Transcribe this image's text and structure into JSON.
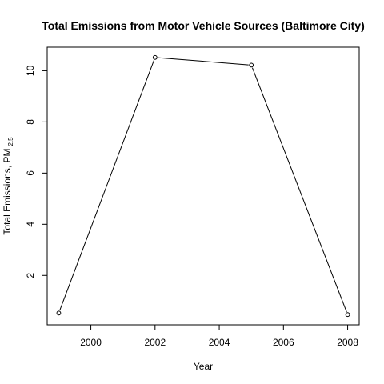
{
  "chart_data": {
    "type": "line",
    "title": "Total Emissions from Motor Vehicle Sources (Baltimore City)",
    "xlabel": "Year",
    "ylabel": {
      "main": "Total Emissions, PM",
      "subscript": "2.5"
    },
    "x": [
      1999,
      2002,
      2005,
      2008
    ],
    "y": [
      0.53,
      10.52,
      10.22,
      0.47
    ],
    "xlim": [
      1998.64,
      2008.36
    ],
    "ylim": [
      0.07,
      10.92
    ],
    "xticks": [
      "2000",
      "2002",
      "2004",
      "2006",
      "2008"
    ],
    "yticks": [
      "2",
      "4",
      "6",
      "8",
      "10"
    ],
    "markers": "open-circle",
    "grid": false,
    "legend": "none",
    "line_color": "#000000"
  }
}
